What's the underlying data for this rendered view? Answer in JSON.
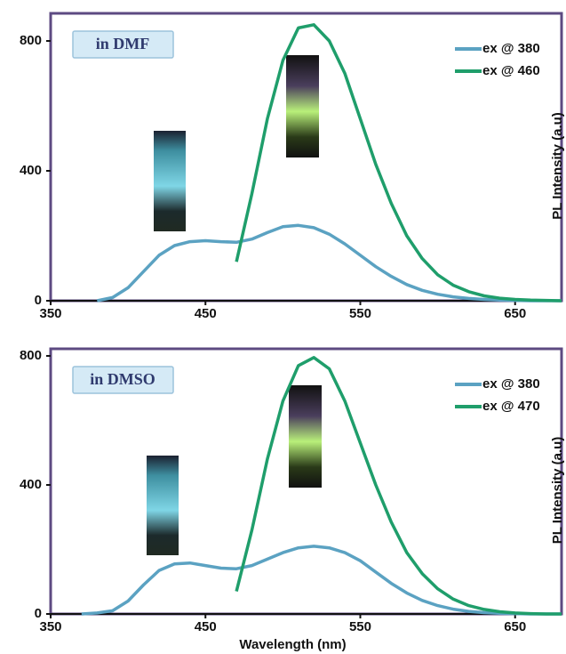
{
  "chart_data": [
    {
      "type": "line",
      "annotation": "in DMF",
      "ylabel": "PL Intensity (a.u)",
      "xlim": [
        350,
        680
      ],
      "ylim": [
        0,
        885
      ],
      "xticks": [
        350,
        450,
        550,
        650
      ],
      "yticks": [
        0,
        400,
        800
      ],
      "legend": "upper right",
      "x": [
        370,
        380,
        390,
        400,
        410,
        420,
        430,
        440,
        450,
        460,
        470,
        480,
        490,
        500,
        510,
        520,
        530,
        540,
        550,
        560,
        570,
        580,
        590,
        600,
        610,
        620,
        630,
        640,
        650,
        660,
        670,
        680
      ],
      "series": [
        {
          "name": "ex @ 380",
          "color": "#5ba2c2",
          "values": [
            null,
            0,
            10,
            40,
            90,
            140,
            170,
            182,
            185,
            182,
            180,
            190,
            210,
            228,
            232,
            225,
            205,
            175,
            140,
            105,
            75,
            50,
            32,
            20,
            12,
            7,
            4,
            2,
            1,
            0,
            0,
            0
          ]
        },
        {
          "name": "ex @ 460",
          "color": "#1f9e6b",
          "values": [
            null,
            null,
            null,
            null,
            null,
            null,
            null,
            null,
            null,
            null,
            120,
            330,
            560,
            740,
            840,
            850,
            800,
            700,
            560,
            420,
            300,
            200,
            130,
            80,
            48,
            28,
            15,
            8,
            4,
            2,
            1,
            0
          ]
        }
      ]
    },
    {
      "type": "line",
      "annotation": "in DMSO",
      "ylabel": "PL Intensity (a.u)",
      "xlabel": "Wavelength (nm)",
      "xlim": [
        350,
        680
      ],
      "ylim": [
        0,
        822
      ],
      "xticks": [
        350,
        450,
        550,
        650
      ],
      "yticks": [
        0,
        400,
        800
      ],
      "legend": "upper right",
      "x": [
        370,
        380,
        390,
        400,
        410,
        420,
        430,
        440,
        450,
        460,
        470,
        480,
        490,
        500,
        510,
        520,
        530,
        540,
        550,
        560,
        570,
        580,
        590,
        600,
        610,
        620,
        630,
        640,
        650,
        660,
        670,
        680
      ],
      "series": [
        {
          "name": "ex @ 380",
          "color": "#5ba2c2",
          "values": [
            0,
            3,
            10,
            40,
            90,
            135,
            155,
            158,
            150,
            142,
            140,
            150,
            170,
            190,
            205,
            210,
            205,
            190,
            165,
            130,
            95,
            65,
            42,
            26,
            15,
            8,
            4,
            2,
            1,
            0,
            0,
            0
          ]
        },
        {
          "name": "ex @ 470",
          "color": "#1f9e6b",
          "values": [
            null,
            null,
            null,
            null,
            null,
            null,
            null,
            null,
            null,
            null,
            70,
            260,
            480,
            660,
            770,
            795,
            760,
            660,
            530,
            400,
            285,
            190,
            125,
            78,
            46,
            26,
            14,
            7,
            3,
            1,
            0,
            0
          ]
        }
      ]
    }
  ]
}
